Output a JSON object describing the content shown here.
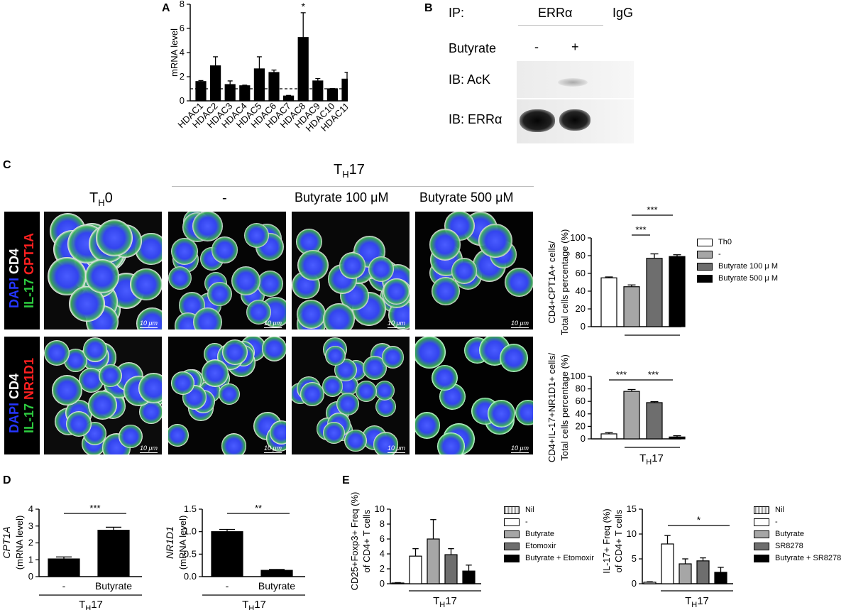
{
  "panel_labels": {
    "a": "A",
    "b": "B",
    "c": "C",
    "d": "D",
    "e": "E"
  },
  "panel_b": {
    "ip_label": "IP:",
    "errα_header": "ERRα",
    "igg_header": "IgG",
    "butyrate_label": "Butyrate",
    "minus": "-",
    "plus": "+",
    "ib_ack": "IB: AcK",
    "ib_erra": "IB: ERRα"
  },
  "panel_c": {
    "th17_header": "TH17",
    "column_headers": [
      "TH0",
      "-",
      "Butyrate 100 μM",
      "Butyrate 500 μM"
    ],
    "row1_label": [
      "DAPI",
      "CD4",
      "IL-17",
      "CPT1A"
    ],
    "row2_label": [
      "DAPI",
      "CD4",
      "IL-17",
      "NR1D1"
    ],
    "scale_bar": "10 μm",
    "legend": [
      "Th0",
      "-",
      "Butyrate 100 μ M",
      "Butyrate 500 μ M"
    ]
  },
  "panel_e_legends": {
    "left": [
      "Nil",
      "-",
      "Butyrate",
      "Etomoxir",
      "Butyrate + Etomoxir"
    ],
    "right": [
      "Nil",
      "-",
      "Butyrate",
      "SR8278",
      "Butyrate + SR8278"
    ]
  },
  "colors": {
    "bar_black": "#000000",
    "bar_gray_light": "#a6a6a6",
    "bar_gray_dark": "#6e6e6e",
    "blue_dapi": "#2536ff",
    "green_il17": "#2ecc40",
    "red": "#ff2020"
  },
  "chart_data": [
    {
      "id": "A",
      "type": "bar",
      "ylabel": "mRNA level",
      "categories": [
        "HDAC1",
        "HDAC2",
        "HDAC3",
        "HDAC4",
        "HDAC5",
        "HDAC6",
        "HDAC7",
        "HDAC8",
        "HDAC9",
        "HDAC10",
        "HDAC11"
      ],
      "values": [
        1.6,
        2.9,
        1.35,
        1.25,
        2.65,
        2.35,
        0.4,
        5.25,
        1.65,
        1.0,
        1.8
      ],
      "errors": [
        0.08,
        0.75,
        0.3,
        0.05,
        1.0,
        0.2,
        0.05,
        2.05,
        0.2,
        0.02,
        0.55
      ],
      "ylim": [
        0,
        8
      ],
      "yticks": [
        0,
        2,
        4,
        6,
        8
      ],
      "reference_line": 1,
      "annotation": "*"
    },
    {
      "id": "C1",
      "type": "bar",
      "ylabel": "CD4+CPT1A+ cells/ Total cells percentage (%)",
      "categories": [
        "Th0",
        "-",
        "Butyrate 100 μ M",
        "Butyrate 500 μ M"
      ],
      "values": [
        55,
        45,
        77,
        79
      ],
      "errors": [
        1,
        2,
        5,
        2
      ],
      "ylim": [
        0,
        100
      ],
      "yticks": [
        0,
        20,
        40,
        60,
        80,
        100
      ],
      "group_label": "TH17",
      "significance": [
        "***",
        "***"
      ]
    },
    {
      "id": "C2",
      "type": "bar",
      "ylabel": "CD4+IL-17+NR1D1+ cells/ Total cells percentage (%)",
      "categories": [
        "Th0",
        "-",
        "Butyrate 100 μ M",
        "Butyrate 500 μ M"
      ],
      "values": [
        8,
        76,
        58,
        3
      ],
      "errors": [
        2,
        3,
        1.5,
        2
      ],
      "ylim": [
        0,
        100
      ],
      "yticks": [
        0,
        20,
        40,
        60,
        80,
        100
      ],
      "group_label": "TH17",
      "significance": [
        "***",
        "***"
      ]
    },
    {
      "id": "D1",
      "type": "bar",
      "ylabel": "CPT1A (mRNA level)",
      "categories": [
        "-",
        "Butyrate"
      ],
      "values": [
        1.05,
        2.75
      ],
      "errors": [
        0.12,
        0.18
      ],
      "ylim": [
        0,
        4
      ],
      "yticks": [
        0,
        1,
        2,
        3,
        4
      ],
      "group_label": "TH17",
      "significance": "***"
    },
    {
      "id": "D2",
      "type": "bar",
      "ylabel": "NR1D1 (mRNA level)",
      "categories": [
        "-",
        "Butyrate"
      ],
      "values": [
        1.0,
        0.14
      ],
      "errors": [
        0.05,
        0.02
      ],
      "ylim": [
        0,
        1.5
      ],
      "yticks": [
        0.0,
        0.5,
        1.0,
        1.5
      ],
      "group_label": "TH17",
      "significance": "**"
    },
    {
      "id": "E1",
      "type": "bar",
      "ylabel": "CD25+Foxp3+ Freq (%) of CD4+ T cells",
      "categories": [
        "Nil",
        "-",
        "Butyrate",
        "Etomoxir",
        "Butyrate + Etomoxir"
      ],
      "values": [
        0.1,
        3.7,
        6.0,
        3.9,
        1.7
      ],
      "errors": [
        0.05,
        1.0,
        2.6,
        0.8,
        0.8
      ],
      "ylim": [
        0,
        10
      ],
      "yticks": [
        0,
        2,
        4,
        6,
        8,
        10
      ],
      "group_label": "TH17"
    },
    {
      "id": "E2",
      "type": "bar",
      "ylabel": "IL-17+ Freq (%) of CD4+ T cells",
      "categories": [
        "Nil",
        "-",
        "Butyrate",
        "SR8278",
        "Butyrate + SR8278"
      ],
      "values": [
        0.3,
        8.0,
        4.0,
        4.6,
        2.3
      ],
      "errors": [
        0.1,
        1.7,
        1.0,
        0.6,
        1.0
      ],
      "ylim": [
        0,
        15
      ],
      "yticks": [
        0,
        5,
        10,
        15
      ],
      "group_label": "TH17",
      "significance": "*"
    }
  ]
}
